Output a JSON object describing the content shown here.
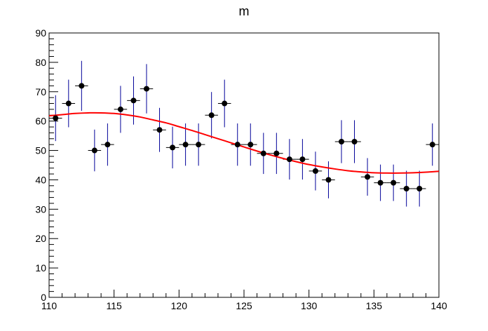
{
  "chart_data": {
    "type": "scatter",
    "title": "m",
    "xlabel": "",
    "ylabel": "",
    "xlim": [
      110,
      140
    ],
    "ylim": [
      0,
      90
    ],
    "x_ticks": [
      "110",
      "115",
      "120",
      "125",
      "130",
      "135",
      "140"
    ],
    "y_ticks": [
      "0",
      "10",
      "20",
      "30",
      "40",
      "50",
      "60",
      "70",
      "80",
      "90"
    ],
    "grid": false,
    "bin_half_width": 0.5,
    "colors": {
      "points": "#000000",
      "error_bars": "#000099",
      "fit": "#ff0000"
    },
    "series": [
      {
        "kind": "data-with-errors",
        "x": [
          110.5,
          111.5,
          112.5,
          113.5,
          114.5,
          115.5,
          116.5,
          117.5,
          118.5,
          119.5,
          120.5,
          121.5,
          122.5,
          123.5,
          124.5,
          125.5,
          126.5,
          127.5,
          128.5,
          129.5,
          130.5,
          131.5,
          132.5,
          133.5,
          134.5,
          135.5,
          136.5,
          137.5,
          138.5,
          139.5
        ],
        "y": [
          61,
          66,
          72,
          50,
          52,
          64,
          67,
          71,
          57,
          51,
          52,
          52,
          62,
          66,
          52,
          52,
          49,
          49,
          47,
          47,
          43,
          40,
          53,
          53,
          41,
          39,
          39,
          37,
          37,
          52
        ],
        "yerr": [
          7.8,
          8.1,
          8.5,
          7.1,
          7.2,
          8.0,
          8.2,
          8.4,
          7.5,
          7.1,
          7.2,
          7.2,
          7.9,
          8.1,
          7.2,
          7.2,
          7.0,
          7.0,
          6.9,
          6.9,
          6.6,
          6.3,
          7.3,
          7.3,
          6.4,
          6.2,
          6.2,
          6.1,
          6.1,
          7.2
        ]
      },
      {
        "kind": "fit-curve",
        "x": [
          110,
          111,
          112,
          113,
          114,
          115,
          116,
          117,
          118,
          119,
          120,
          121,
          122,
          123,
          124,
          125,
          126,
          127,
          128,
          129,
          130,
          131,
          132,
          133,
          134,
          135,
          136,
          137,
          138,
          139,
          140
        ],
        "y": [
          61.8,
          62.2,
          62.6,
          62.8,
          62.8,
          62.6,
          62.1,
          61.4,
          60.4,
          59.4,
          58.1,
          56.8,
          55.4,
          54.0,
          52.6,
          51.2,
          49.8,
          48.5,
          47.3,
          46.2,
          45.2,
          44.4,
          43.7,
          43.1,
          42.7,
          42.4,
          42.3,
          42.3,
          42.4,
          42.6,
          42.9
        ]
      }
    ]
  }
}
